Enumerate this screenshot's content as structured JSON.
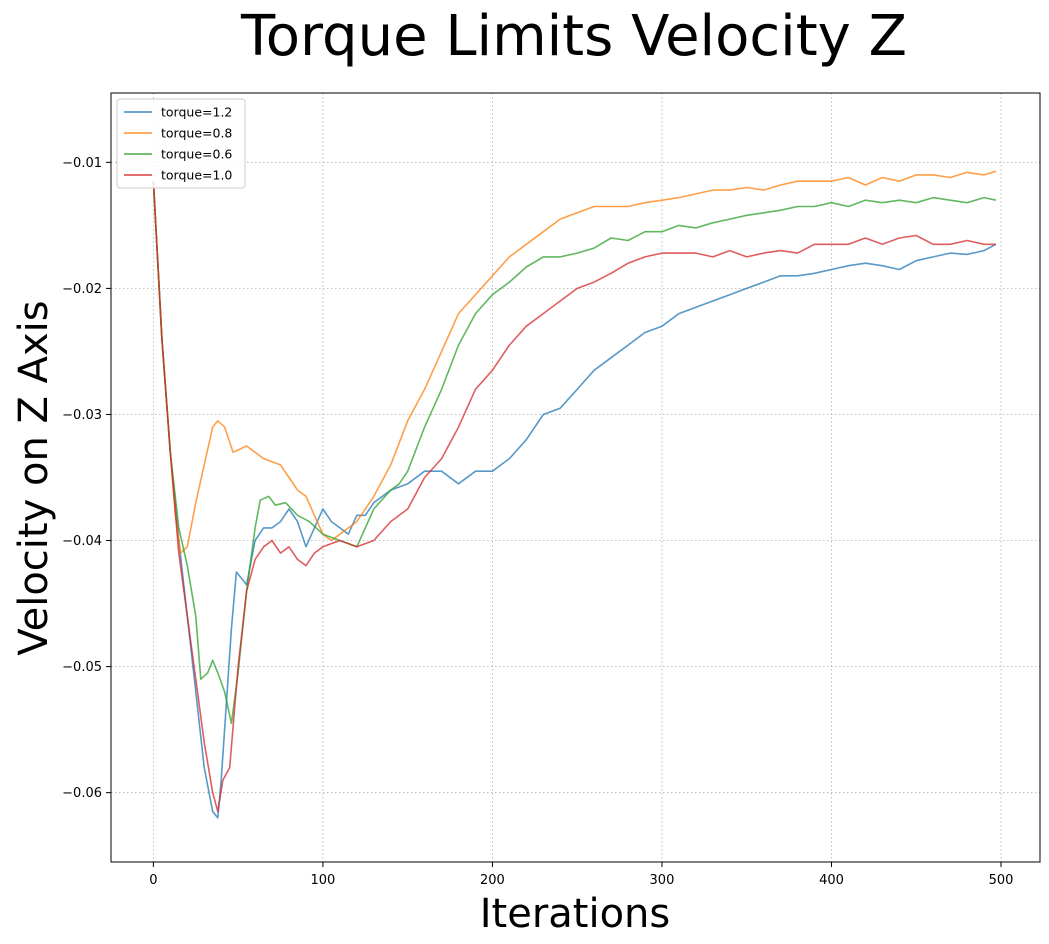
{
  "chart_data": {
    "type": "line",
    "title": "Torque Limits Velocity Z",
    "xlabel": "Iterations",
    "ylabel": "Velocity on Z Axis",
    "xlim": [
      -25,
      523
    ],
    "ylim": [
      -0.0655,
      -0.0045
    ],
    "xticks": [
      0,
      100,
      200,
      300,
      400,
      500
    ],
    "yticks": [
      -0.06,
      -0.05,
      -0.04,
      -0.03,
      -0.02,
      -0.01
    ],
    "xtick_labels": [
      "0",
      "100",
      "200",
      "300",
      "400",
      "500"
    ],
    "ytick_labels": [
      "−0.06",
      "−0.05",
      "−0.04",
      "−0.03",
      "−0.02",
      "−0.01"
    ],
    "grid": true,
    "legend_position": "top-left",
    "series": [
      {
        "name": "torque=1.2",
        "color": "#1f77b4",
        "points": [
          [
            0,
            -0.0115
          ],
          [
            5,
            -0.024
          ],
          [
            10,
            -0.033
          ],
          [
            15,
            -0.04
          ],
          [
            20,
            -0.046
          ],
          [
            25,
            -0.052
          ],
          [
            30,
            -0.058
          ],
          [
            35,
            -0.0615
          ],
          [
            38,
            -0.062
          ],
          [
            40,
            -0.059
          ],
          [
            43,
            -0.053
          ],
          [
            46,
            -0.047
          ],
          [
            49,
            -0.0425
          ],
          [
            52,
            -0.043
          ],
          [
            55,
            -0.0435
          ],
          [
            60,
            -0.04
          ],
          [
            65,
            -0.039
          ],
          [
            70,
            -0.039
          ],
          [
            75,
            -0.0385
          ],
          [
            80,
            -0.0375
          ],
          [
            85,
            -0.0385
          ],
          [
            90,
            -0.0405
          ],
          [
            95,
            -0.039
          ],
          [
            100,
            -0.0375
          ],
          [
            105,
            -0.0385
          ],
          [
            110,
            -0.039
          ],
          [
            115,
            -0.0395
          ],
          [
            120,
            -0.038
          ],
          [
            125,
            -0.038
          ],
          [
            130,
            -0.037
          ],
          [
            140,
            -0.036
          ],
          [
            150,
            -0.0355
          ],
          [
            160,
            -0.0345
          ],
          [
            170,
            -0.0345
          ],
          [
            180,
            -0.0355
          ],
          [
            190,
            -0.0345
          ],
          [
            200,
            -0.0345
          ],
          [
            210,
            -0.0335
          ],
          [
            220,
            -0.032
          ],
          [
            230,
            -0.03
          ],
          [
            240,
            -0.0295
          ],
          [
            250,
            -0.028
          ],
          [
            260,
            -0.0265
          ],
          [
            270,
            -0.0255
          ],
          [
            280,
            -0.0245
          ],
          [
            290,
            -0.0235
          ],
          [
            300,
            -0.023
          ],
          [
            310,
            -0.022
          ],
          [
            320,
            -0.0215
          ],
          [
            330,
            -0.021
          ],
          [
            340,
            -0.0205
          ],
          [
            350,
            -0.02
          ],
          [
            360,
            -0.0195
          ],
          [
            370,
            -0.019
          ],
          [
            380,
            -0.019
          ],
          [
            390,
            -0.0188
          ],
          [
            400,
            -0.0185
          ],
          [
            410,
            -0.0182
          ],
          [
            420,
            -0.018
          ],
          [
            430,
            -0.0182
          ],
          [
            440,
            -0.0185
          ],
          [
            450,
            -0.0178
          ],
          [
            460,
            -0.0175
          ],
          [
            470,
            -0.0172
          ],
          [
            480,
            -0.0173
          ],
          [
            490,
            -0.017
          ],
          [
            497,
            -0.0165
          ]
        ]
      },
      {
        "name": "torque=0.8",
        "color": "#ff7f0e",
        "points": [
          [
            0,
            -0.0115
          ],
          [
            5,
            -0.024
          ],
          [
            10,
            -0.033
          ],
          [
            13,
            -0.038
          ],
          [
            16,
            -0.041
          ],
          [
            20,
            -0.0405
          ],
          [
            25,
            -0.037
          ],
          [
            30,
            -0.034
          ],
          [
            35,
            -0.031
          ],
          [
            38,
            -0.0305
          ],
          [
            42,
            -0.031
          ],
          [
            47,
            -0.033
          ],
          [
            55,
            -0.0325
          ],
          [
            65,
            -0.0335
          ],
          [
            75,
            -0.034
          ],
          [
            80,
            -0.035
          ],
          [
            85,
            -0.036
          ],
          [
            90,
            -0.0365
          ],
          [
            95,
            -0.038
          ],
          [
            100,
            -0.0395
          ],
          [
            105,
            -0.04
          ],
          [
            110,
            -0.0395
          ],
          [
            120,
            -0.0385
          ],
          [
            130,
            -0.0365
          ],
          [
            140,
            -0.034
          ],
          [
            150,
            -0.0305
          ],
          [
            160,
            -0.028
          ],
          [
            170,
            -0.025
          ],
          [
            180,
            -0.022
          ],
          [
            190,
            -0.0205
          ],
          [
            200,
            -0.019
          ],
          [
            210,
            -0.0175
          ],
          [
            220,
            -0.0165
          ],
          [
            230,
            -0.0155
          ],
          [
            240,
            -0.0145
          ],
          [
            250,
            -0.014
          ],
          [
            260,
            -0.0135
          ],
          [
            270,
            -0.0135
          ],
          [
            280,
            -0.0135
          ],
          [
            290,
            -0.0132
          ],
          [
            300,
            -0.013
          ],
          [
            310,
            -0.0128
          ],
          [
            320,
            -0.0125
          ],
          [
            330,
            -0.0122
          ],
          [
            340,
            -0.0122
          ],
          [
            350,
            -0.012
          ],
          [
            360,
            -0.0122
          ],
          [
            370,
            -0.0118
          ],
          [
            380,
            -0.0115
          ],
          [
            390,
            -0.0115
          ],
          [
            400,
            -0.0115
          ],
          [
            410,
            -0.0112
          ],
          [
            420,
            -0.0118
          ],
          [
            430,
            -0.0112
          ],
          [
            440,
            -0.0115
          ],
          [
            450,
            -0.011
          ],
          [
            460,
            -0.011
          ],
          [
            470,
            -0.0112
          ],
          [
            480,
            -0.0108
          ],
          [
            490,
            -0.011
          ],
          [
            497,
            -0.0107
          ]
        ]
      },
      {
        "name": "torque=0.6",
        "color": "#2ca02c",
        "points": [
          [
            0,
            -0.0115
          ],
          [
            5,
            -0.024
          ],
          [
            10,
            -0.033
          ],
          [
            15,
            -0.039
          ],
          [
            20,
            -0.042
          ],
          [
            25,
            -0.046
          ],
          [
            28,
            -0.051
          ],
          [
            32,
            -0.0505
          ],
          [
            35,
            -0.0495
          ],
          [
            38,
            -0.0505
          ],
          [
            42,
            -0.052
          ],
          [
            46,
            -0.0545
          ],
          [
            50,
            -0.0505
          ],
          [
            55,
            -0.044
          ],
          [
            60,
            -0.039
          ],
          [
            63,
            -0.0368
          ],
          [
            68,
            -0.0365
          ],
          [
            72,
            -0.0372
          ],
          [
            78,
            -0.037
          ],
          [
            85,
            -0.038
          ],
          [
            92,
            -0.0385
          ],
          [
            100,
            -0.0395
          ],
          [
            110,
            -0.04
          ],
          [
            120,
            -0.0405
          ],
          [
            125,
            -0.039
          ],
          [
            130,
            -0.0375
          ],
          [
            140,
            -0.036
          ],
          [
            145,
            -0.0355
          ],
          [
            150,
            -0.0345
          ],
          [
            160,
            -0.031
          ],
          [
            170,
            -0.028
          ],
          [
            180,
            -0.0245
          ],
          [
            190,
            -0.022
          ],
          [
            200,
            -0.0205
          ],
          [
            210,
            -0.0195
          ],
          [
            220,
            -0.0183
          ],
          [
            230,
            -0.0175
          ],
          [
            240,
            -0.0175
          ],
          [
            250,
            -0.0172
          ],
          [
            260,
            -0.0168
          ],
          [
            270,
            -0.016
          ],
          [
            280,
            -0.0162
          ],
          [
            290,
            -0.0155
          ],
          [
            300,
            -0.0155
          ],
          [
            310,
            -0.015
          ],
          [
            320,
            -0.0152
          ],
          [
            330,
            -0.0148
          ],
          [
            340,
            -0.0145
          ],
          [
            350,
            -0.0142
          ],
          [
            360,
            -0.014
          ],
          [
            370,
            -0.0138
          ],
          [
            380,
            -0.0135
          ],
          [
            390,
            -0.0135
          ],
          [
            400,
            -0.0132
          ],
          [
            410,
            -0.0135
          ],
          [
            420,
            -0.013
          ],
          [
            430,
            -0.0132
          ],
          [
            440,
            -0.013
          ],
          [
            450,
            -0.0132
          ],
          [
            460,
            -0.0128
          ],
          [
            470,
            -0.013
          ],
          [
            480,
            -0.0132
          ],
          [
            490,
            -0.0128
          ],
          [
            497,
            -0.013
          ]
        ]
      },
      {
        "name": "torque=1.0",
        "color": "#d62728",
        "points": [
          [
            0,
            -0.0115
          ],
          [
            5,
            -0.024
          ],
          [
            10,
            -0.033
          ],
          [
            15,
            -0.041
          ],
          [
            20,
            -0.046
          ],
          [
            25,
            -0.051
          ],
          [
            30,
            -0.056
          ],
          [
            35,
            -0.06
          ],
          [
            38,
            -0.0615
          ],
          [
            41,
            -0.059
          ],
          [
            45,
            -0.058
          ],
          [
            50,
            -0.05
          ],
          [
            55,
            -0.044
          ],
          [
            60,
            -0.0415
          ],
          [
            65,
            -0.0405
          ],
          [
            70,
            -0.04
          ],
          [
            75,
            -0.041
          ],
          [
            80,
            -0.0405
          ],
          [
            85,
            -0.0415
          ],
          [
            90,
            -0.042
          ],
          [
            95,
            -0.041
          ],
          [
            100,
            -0.0405
          ],
          [
            110,
            -0.04
          ],
          [
            120,
            -0.0405
          ],
          [
            130,
            -0.04
          ],
          [
            140,
            -0.0385
          ],
          [
            150,
            -0.0375
          ],
          [
            160,
            -0.035
          ],
          [
            170,
            -0.0335
          ],
          [
            180,
            -0.031
          ],
          [
            190,
            -0.028
          ],
          [
            200,
            -0.0265
          ],
          [
            210,
            -0.0245
          ],
          [
            220,
            -0.023
          ],
          [
            230,
            -0.022
          ],
          [
            240,
            -0.021
          ],
          [
            250,
            -0.02
          ],
          [
            260,
            -0.0195
          ],
          [
            270,
            -0.0188
          ],
          [
            280,
            -0.018
          ],
          [
            290,
            -0.0175
          ],
          [
            300,
            -0.0172
          ],
          [
            310,
            -0.0172
          ],
          [
            320,
            -0.0172
          ],
          [
            330,
            -0.0175
          ],
          [
            340,
            -0.017
          ],
          [
            350,
            -0.0175
          ],
          [
            360,
            -0.0172
          ],
          [
            370,
            -0.017
          ],
          [
            380,
            -0.0172
          ],
          [
            390,
            -0.0165
          ],
          [
            400,
            -0.0165
          ],
          [
            410,
            -0.0165
          ],
          [
            420,
            -0.016
          ],
          [
            430,
            -0.0165
          ],
          [
            440,
            -0.016
          ],
          [
            450,
            -0.0158
          ],
          [
            460,
            -0.0165
          ],
          [
            470,
            -0.0165
          ],
          [
            480,
            -0.0162
          ],
          [
            490,
            -0.0165
          ],
          [
            497,
            -0.0165
          ]
        ]
      }
    ]
  }
}
